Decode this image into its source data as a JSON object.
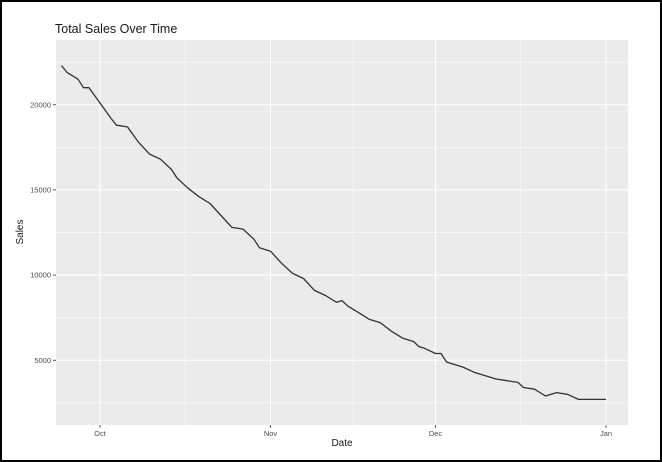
{
  "chart_data": {
    "type": "line",
    "title": "Total Sales Over Time",
    "xlabel": "Date",
    "ylabel": "Sales",
    "x_axis": {
      "scale": "date",
      "range": [
        "2023-09-23",
        "2024-01-05"
      ],
      "ticks": [
        {
          "date": "2023-10-01",
          "label": "Oct"
        },
        {
          "date": "2023-11-01",
          "label": "Nov"
        },
        {
          "date": "2023-12-01",
          "label": "Dec"
        },
        {
          "date": "2024-01-01",
          "label": "Jan"
        }
      ]
    },
    "y_axis": {
      "range": [
        1200,
        23800
      ],
      "ticks": [
        5000,
        10000,
        15000,
        20000
      ]
    },
    "grid": true,
    "background": "#ebebeb",
    "gridline_color": "#ffffff",
    "line_color": "#333333",
    "series": [
      {
        "x": [
          "2023-09-24",
          "2023-09-25",
          "2023-09-27",
          "2023-09-28",
          "2023-09-29",
          "2023-10-01",
          "2023-10-03",
          "2023-10-04",
          "2023-10-06",
          "2023-10-08",
          "2023-10-10",
          "2023-10-12",
          "2023-10-14",
          "2023-10-15",
          "2023-10-17",
          "2023-10-19",
          "2023-10-21",
          "2023-10-23",
          "2023-10-25",
          "2023-10-27",
          "2023-10-29",
          "2023-10-30",
          "2023-11-01",
          "2023-11-03",
          "2023-11-05",
          "2023-11-07",
          "2023-11-09",
          "2023-11-11",
          "2023-11-13",
          "2023-11-14",
          "2023-11-15",
          "2023-11-17",
          "2023-11-19",
          "2023-11-21",
          "2023-11-23",
          "2023-11-25",
          "2023-11-27",
          "2023-11-28",
          "2023-11-29",
          "2023-12-01",
          "2023-12-02",
          "2023-12-03",
          "2023-12-04",
          "2023-12-06",
          "2023-12-08",
          "2023-12-10",
          "2023-12-12",
          "2023-12-14",
          "2023-12-16",
          "2023-12-17",
          "2023-12-19",
          "2023-12-21",
          "2023-12-23",
          "2023-12-25",
          "2023-12-27",
          "2023-12-28",
          "2023-12-30",
          "2024-01-01"
        ],
        "y": [
          22300,
          21900,
          21500,
          21000,
          21000,
          20100,
          19200,
          18800,
          18700,
          17800,
          17100,
          16800,
          16200,
          15700,
          15100,
          14600,
          14200,
          13500,
          12800,
          12700,
          12100,
          11600,
          11400,
          10700,
          10100,
          9800,
          9100,
          8800,
          8400,
          8500,
          8200,
          7800,
          7400,
          7200,
          6700,
          6300,
          6100,
          5800,
          5700,
          5400,
          5400,
          4900,
          4800,
          4600,
          4300,
          4100,
          3900,
          3800,
          3700,
          3400,
          3300,
          2900,
          3100,
          3000,
          2700,
          2700,
          2700,
          2700
        ]
      }
    ]
  }
}
